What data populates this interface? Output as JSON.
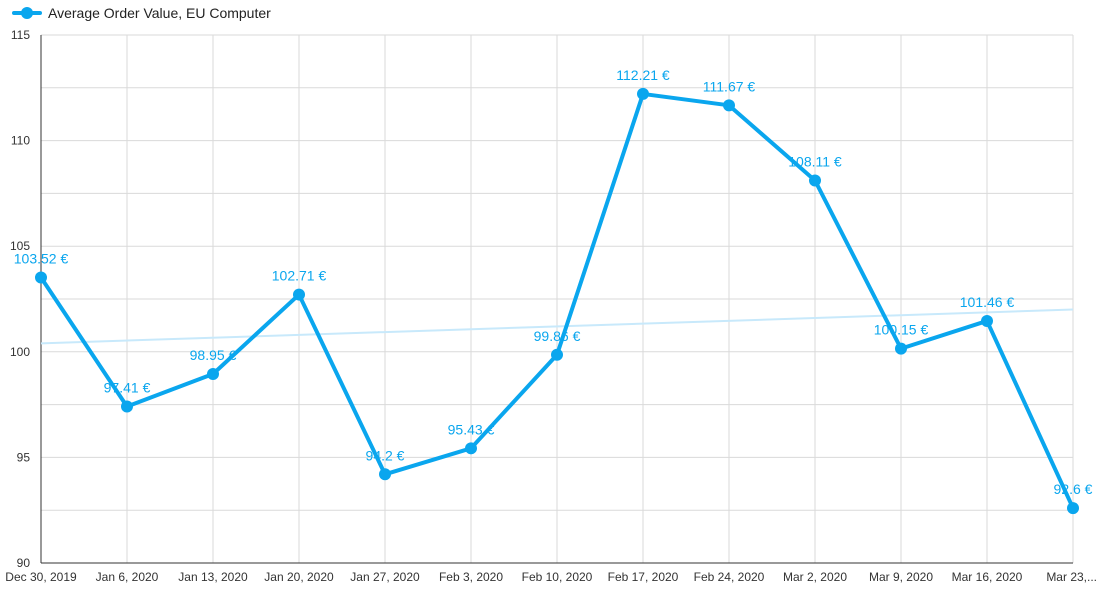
{
  "chart_data": {
    "type": "line",
    "categories": [
      "Dec 30, 2019",
      "Jan 6, 2020",
      "Jan 13, 2020",
      "Jan 20, 2020",
      "Jan 27, 2020",
      "Feb 3, 2020",
      "Feb 10, 2020",
      "Feb 17, 2020",
      "Feb 24, 2020",
      "Mar 2, 2020",
      "Mar 9, 2020",
      "Mar 16, 2020",
      "Mar 23,..."
    ],
    "series": [
      {
        "name": "Average Order Value, EU Computer",
        "values": [
          103.52,
          97.41,
          98.95,
          102.71,
          94.2,
          95.43,
          99.86,
          112.21,
          111.67,
          108.11,
          100.15,
          101.46,
          92.6
        ],
        "labels": [
          "103.52 €",
          "97.41 €",
          "98.95 €",
          "102.71 €",
          "94.2 €",
          "95.43 €",
          "99.86 €",
          "112.21 €",
          "111.67 €",
          "108.11 €",
          "100.15 €",
          "101.46 €",
          "92.6 €"
        ],
        "color": "#0aa6ee"
      }
    ],
    "trendline": {
      "start": 100.4,
      "end": 102.0,
      "color": "#c8e9fb"
    },
    "ylim": [
      90,
      115
    ],
    "yticks": [
      90,
      95,
      100,
      105,
      110,
      115
    ],
    "grid": true,
    "legend": "top-left",
    "title": "",
    "xlabel": "",
    "ylabel": ""
  }
}
